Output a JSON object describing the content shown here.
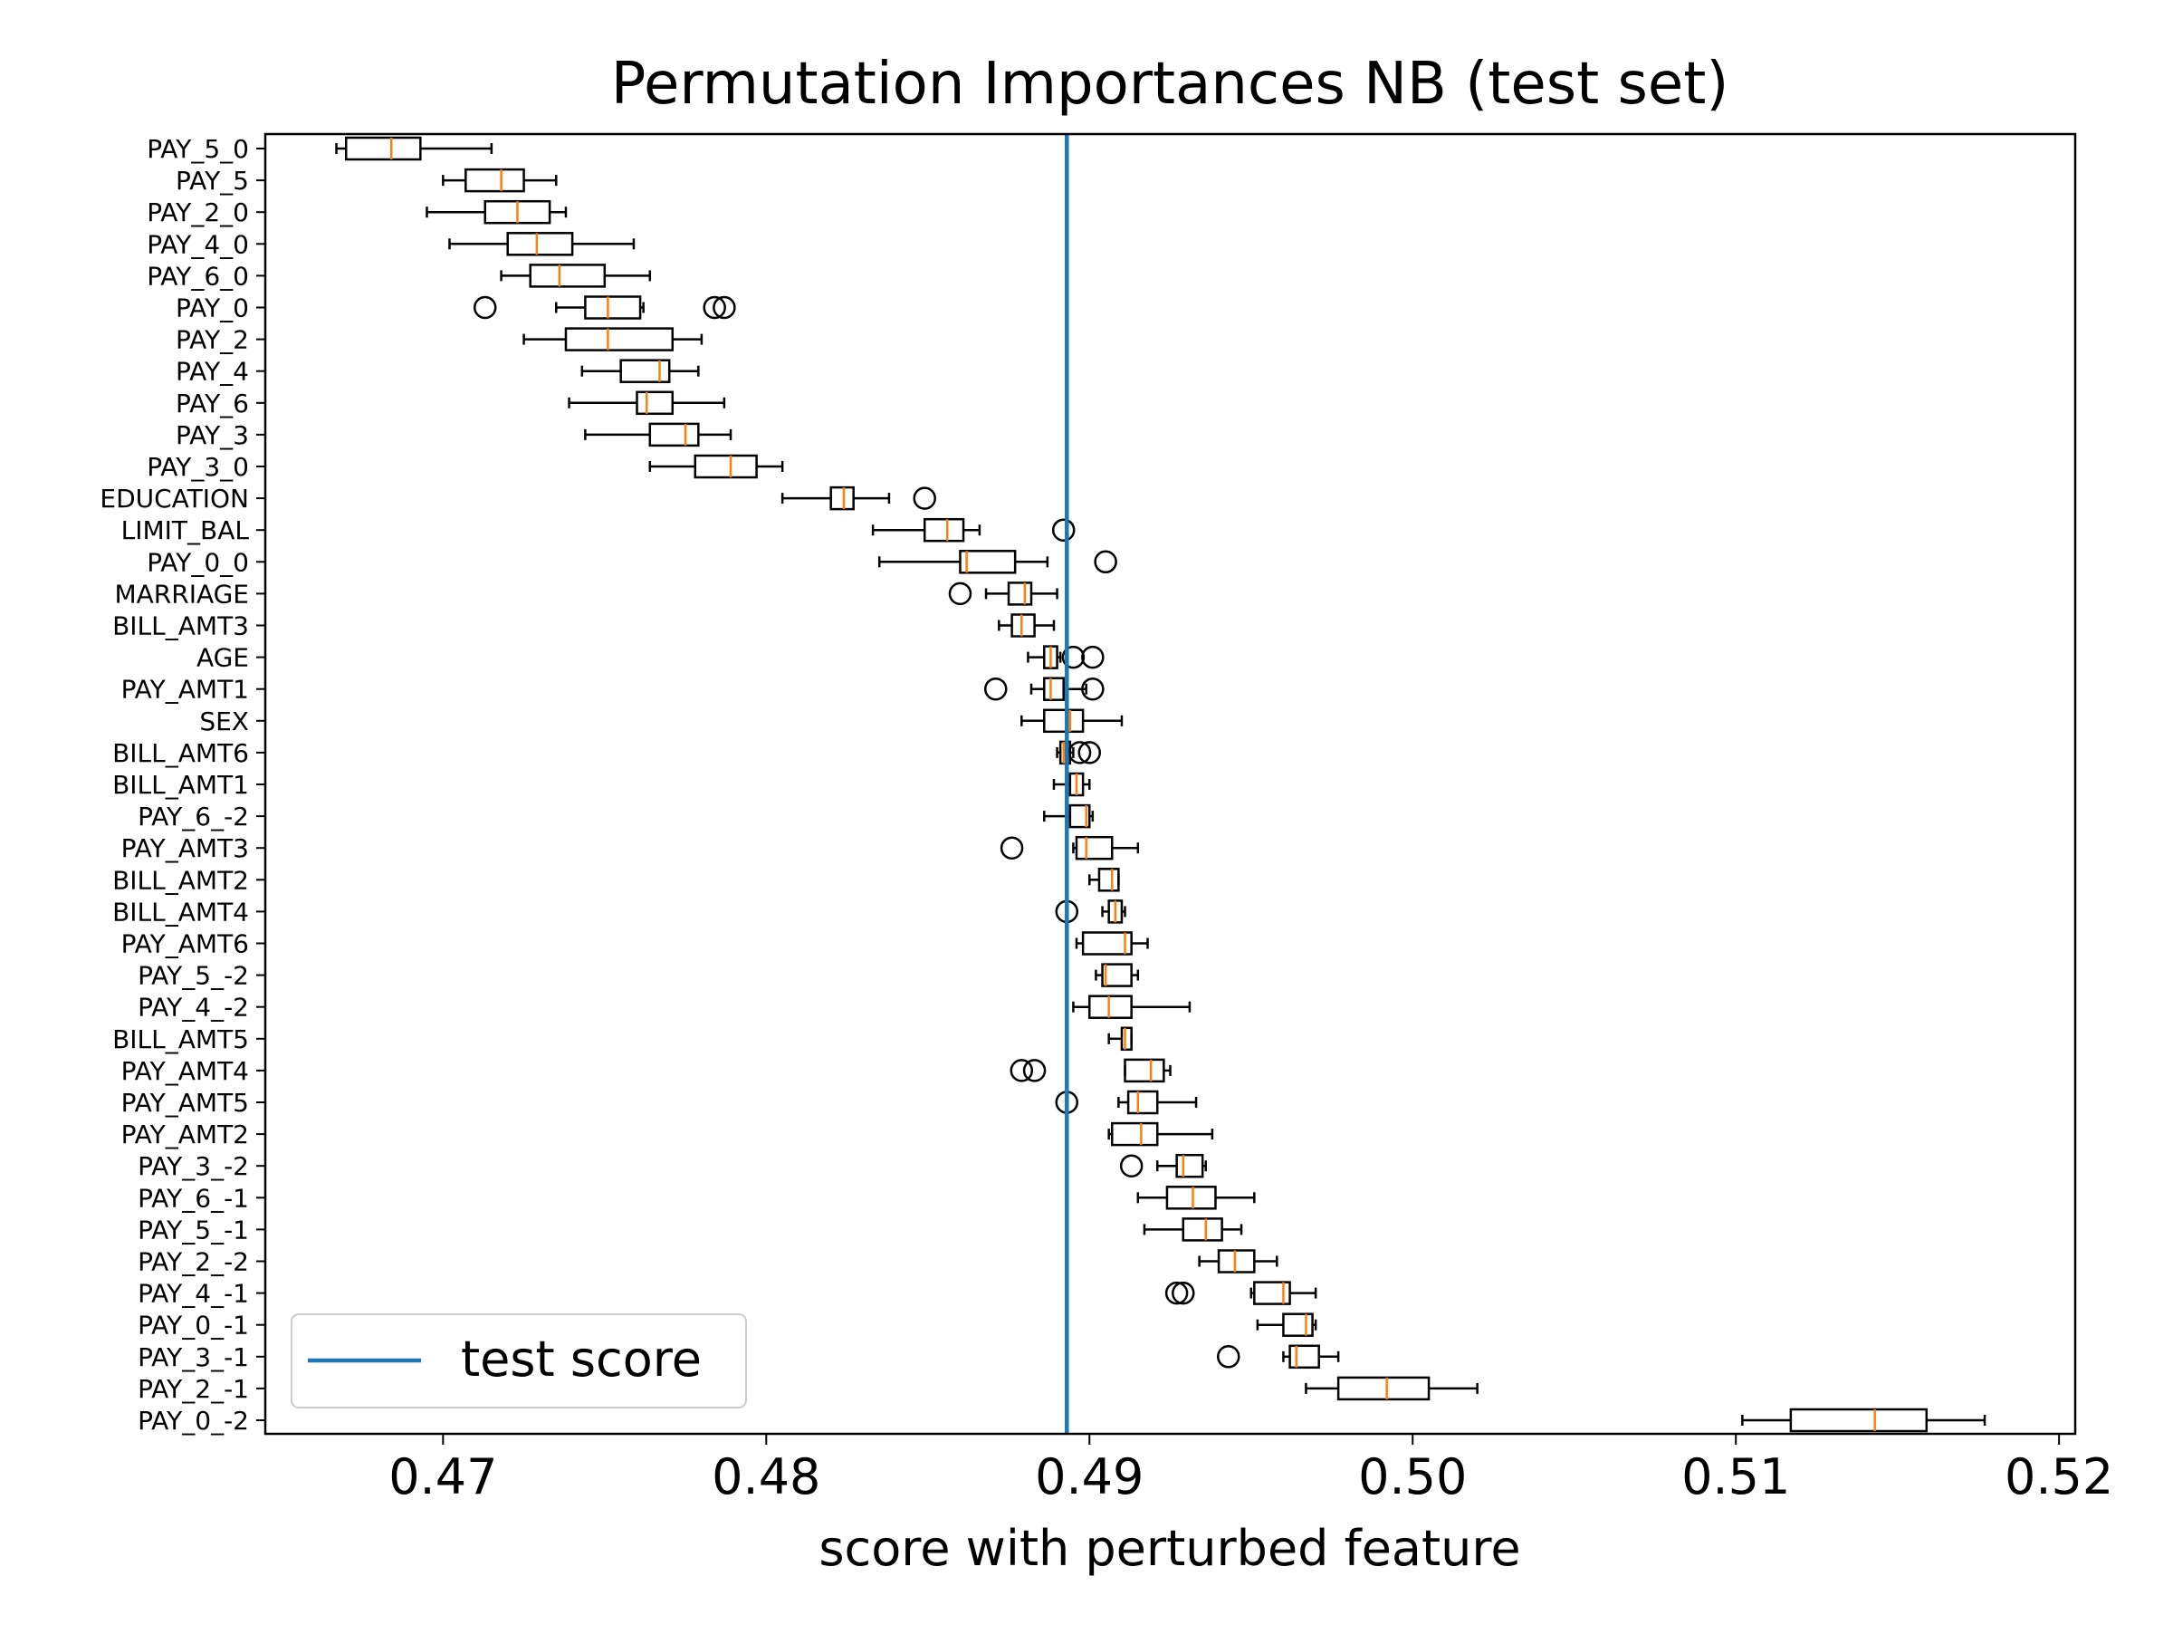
{
  "chart_data": {
    "type": "boxplot",
    "title": "Permutation Importances NB (test set)",
    "xlabel": "score with perturbed feature",
    "ylabel": "",
    "xlim": [
      0.4645,
      0.5205
    ],
    "xticks": [
      0.47,
      0.48,
      0.49,
      0.5,
      0.51,
      0.52
    ],
    "xtick_labels": [
      "0.47",
      "0.48",
      "0.49",
      "0.50",
      "0.51",
      "0.52"
    ],
    "reference_line": {
      "label": "test score",
      "value": 0.4893,
      "color": "#1f77b4"
    },
    "legend": {
      "position": "lower-left",
      "entries": [
        "test score"
      ]
    },
    "median_color": "#ff7f0e",
    "features": [
      {
        "name": "PAY_5_0",
        "whislo": 0.4667,
        "q1": 0.467,
        "med": 0.4684,
        "q3": 0.4693,
        "whishi": 0.4715,
        "fliers": []
      },
      {
        "name": "PAY_5",
        "whislo": 0.47,
        "q1": 0.4707,
        "med": 0.4718,
        "q3": 0.4725,
        "whishi": 0.4735,
        "fliers": []
      },
      {
        "name": "PAY_2_0",
        "whislo": 0.4695,
        "q1": 0.4713,
        "med": 0.4723,
        "q3": 0.4733,
        "whishi": 0.4738,
        "fliers": []
      },
      {
        "name": "PAY_4_0",
        "whislo": 0.4702,
        "q1": 0.472,
        "med": 0.4729,
        "q3": 0.474,
        "whishi": 0.4759,
        "fliers": []
      },
      {
        "name": "PAY_6_0",
        "whislo": 0.4718,
        "q1": 0.4727,
        "med": 0.4736,
        "q3": 0.475,
        "whishi": 0.4764,
        "fliers": []
      },
      {
        "name": "PAY_0",
        "whislo": 0.4735,
        "q1": 0.4744,
        "med": 0.4751,
        "q3": 0.4761,
        "whishi": 0.4762,
        "fliers": [
          0.4713,
          0.4784,
          0.4787
        ]
      },
      {
        "name": "PAY_2",
        "whislo": 0.4725,
        "q1": 0.4738,
        "med": 0.4751,
        "q3": 0.4771,
        "whishi": 0.478,
        "fliers": []
      },
      {
        "name": "PAY_4",
        "whislo": 0.4743,
        "q1": 0.4755,
        "med": 0.4767,
        "q3": 0.477,
        "whishi": 0.4779,
        "fliers": []
      },
      {
        "name": "PAY_6",
        "whislo": 0.4739,
        "q1": 0.476,
        "med": 0.4763,
        "q3": 0.4771,
        "whishi": 0.4787,
        "fliers": []
      },
      {
        "name": "PAY_3",
        "whislo": 0.4744,
        "q1": 0.4764,
        "med": 0.4775,
        "q3": 0.4779,
        "whishi": 0.4789,
        "fliers": []
      },
      {
        "name": "PAY_3_0",
        "whislo": 0.4764,
        "q1": 0.4778,
        "med": 0.4789,
        "q3": 0.4797,
        "whishi": 0.4805,
        "fliers": []
      },
      {
        "name": "EDUCATION",
        "whislo": 0.4805,
        "q1": 0.482,
        "med": 0.4824,
        "q3": 0.4827,
        "whishi": 0.4838,
        "fliers": [
          0.4849
        ]
      },
      {
        "name": "LIMIT_BAL",
        "whislo": 0.4833,
        "q1": 0.4849,
        "med": 0.4856,
        "q3": 0.4861,
        "whishi": 0.4866,
        "fliers": [
          0.4892
        ]
      },
      {
        "name": "PAY_0_0",
        "whislo": 0.4835,
        "q1": 0.486,
        "med": 0.4862,
        "q3": 0.4877,
        "whishi": 0.4887,
        "fliers": [
          0.4905
        ]
      },
      {
        "name": "MARRIAGE",
        "whislo": 0.4868,
        "q1": 0.4875,
        "med": 0.488,
        "q3": 0.4882,
        "whishi": 0.489,
        "fliers": [
          0.486
        ]
      },
      {
        "name": "BILL_AMT3",
        "whislo": 0.4872,
        "q1": 0.4876,
        "med": 0.4879,
        "q3": 0.4883,
        "whishi": 0.4889,
        "fliers": []
      },
      {
        "name": "AGE",
        "whislo": 0.4881,
        "q1": 0.4886,
        "med": 0.4888,
        "q3": 0.489,
        "whishi": 0.4891,
        "fliers": [
          0.4895,
          0.4901
        ]
      },
      {
        "name": "PAY_AMT1",
        "whislo": 0.4882,
        "q1": 0.4886,
        "med": 0.4888,
        "q3": 0.4892,
        "whishi": 0.4899,
        "fliers": [
          0.4871,
          0.4901
        ]
      },
      {
        "name": "SEX",
        "whislo": 0.4879,
        "q1": 0.4886,
        "med": 0.4894,
        "q3": 0.4898,
        "whishi": 0.491,
        "fliers": []
      },
      {
        "name": "BILL_AMT6",
        "whislo": 0.489,
        "q1": 0.4891,
        "med": 0.4892,
        "q3": 0.4894,
        "whishi": 0.4895,
        "fliers": [
          0.4897,
          0.49
        ]
      },
      {
        "name": "BILL_AMT1",
        "whislo": 0.4889,
        "q1": 0.4894,
        "med": 0.4896,
        "q3": 0.4898,
        "whishi": 0.49,
        "fliers": []
      },
      {
        "name": "PAY_6_-2",
        "whislo": 0.4886,
        "q1": 0.4894,
        "med": 0.4899,
        "q3": 0.49,
        "whishi": 0.4901,
        "fliers": []
      },
      {
        "name": "PAY_AMT3",
        "whislo": 0.4895,
        "q1": 0.4896,
        "med": 0.4899,
        "q3": 0.4907,
        "whishi": 0.4915,
        "fliers": [
          0.4876
        ]
      },
      {
        "name": "BILL_AMT2",
        "whislo": 0.49,
        "q1": 0.4903,
        "med": 0.4907,
        "q3": 0.4909,
        "whishi": 0.4909,
        "fliers": []
      },
      {
        "name": "BILL_AMT4",
        "whislo": 0.4904,
        "q1": 0.4906,
        "med": 0.4908,
        "q3": 0.491,
        "whishi": 0.4911,
        "fliers": [
          0.4893
        ]
      },
      {
        "name": "PAY_AMT6",
        "whislo": 0.4896,
        "q1": 0.4898,
        "med": 0.4911,
        "q3": 0.4913,
        "whishi": 0.4918,
        "fliers": []
      },
      {
        "name": "PAY_5_-2",
        "whislo": 0.4902,
        "q1": 0.4904,
        "med": 0.4905,
        "q3": 0.4913,
        "whishi": 0.4915,
        "fliers": []
      },
      {
        "name": "PAY_4_-2",
        "whislo": 0.4895,
        "q1": 0.49,
        "med": 0.4906,
        "q3": 0.4913,
        "whishi": 0.4931,
        "fliers": []
      },
      {
        "name": "BILL_AMT5",
        "whislo": 0.4906,
        "q1": 0.491,
        "med": 0.4911,
        "q3": 0.4913,
        "whishi": 0.4913,
        "fliers": []
      },
      {
        "name": "PAY_AMT4",
        "whislo": 0.4911,
        "q1": 0.4911,
        "med": 0.4919,
        "q3": 0.4923,
        "whishi": 0.4925,
        "fliers": [
          0.4879,
          0.4883
        ]
      },
      {
        "name": "PAY_AMT5",
        "whislo": 0.4909,
        "q1": 0.4912,
        "med": 0.4915,
        "q3": 0.4921,
        "whishi": 0.4933,
        "fliers": [
          0.4893
        ]
      },
      {
        "name": "PAY_AMT2",
        "whislo": 0.4906,
        "q1": 0.4907,
        "med": 0.4916,
        "q3": 0.4921,
        "whishi": 0.4938,
        "fliers": []
      },
      {
        "name": "PAY_3_-2",
        "whislo": 0.4921,
        "q1": 0.4927,
        "med": 0.4929,
        "q3": 0.4935,
        "whishi": 0.4936,
        "fliers": [
          0.4913
        ]
      },
      {
        "name": "PAY_6_-1",
        "whislo": 0.4915,
        "q1": 0.4924,
        "med": 0.4932,
        "q3": 0.4939,
        "whishi": 0.4951,
        "fliers": []
      },
      {
        "name": "PAY_5_-1",
        "whislo": 0.4917,
        "q1": 0.4929,
        "med": 0.4936,
        "q3": 0.4941,
        "whishi": 0.4947,
        "fliers": []
      },
      {
        "name": "PAY_2_-2",
        "whislo": 0.4934,
        "q1": 0.494,
        "med": 0.4945,
        "q3": 0.4951,
        "whishi": 0.4958,
        "fliers": []
      },
      {
        "name": "PAY_4_-1",
        "whislo": 0.495,
        "q1": 0.4951,
        "med": 0.496,
        "q3": 0.4962,
        "whishi": 0.497,
        "fliers": [
          0.4927,
          0.4929
        ]
      },
      {
        "name": "PAY_0_-1",
        "whislo": 0.4952,
        "q1": 0.496,
        "med": 0.4967,
        "q3": 0.4969,
        "whishi": 0.497,
        "fliers": []
      },
      {
        "name": "PAY_3_-1",
        "whislo": 0.496,
        "q1": 0.4962,
        "med": 0.4964,
        "q3": 0.4971,
        "whishi": 0.4977,
        "fliers": [
          0.4943
        ]
      },
      {
        "name": "PAY_2_-1",
        "whislo": 0.4967,
        "q1": 0.4977,
        "med": 0.4992,
        "q3": 0.5005,
        "whishi": 0.502,
        "fliers": []
      },
      {
        "name": "PAY_0_-2",
        "whislo": 0.5102,
        "q1": 0.5117,
        "med": 0.5143,
        "q3": 0.5159,
        "whishi": 0.5177,
        "fliers": []
      }
    ]
  }
}
